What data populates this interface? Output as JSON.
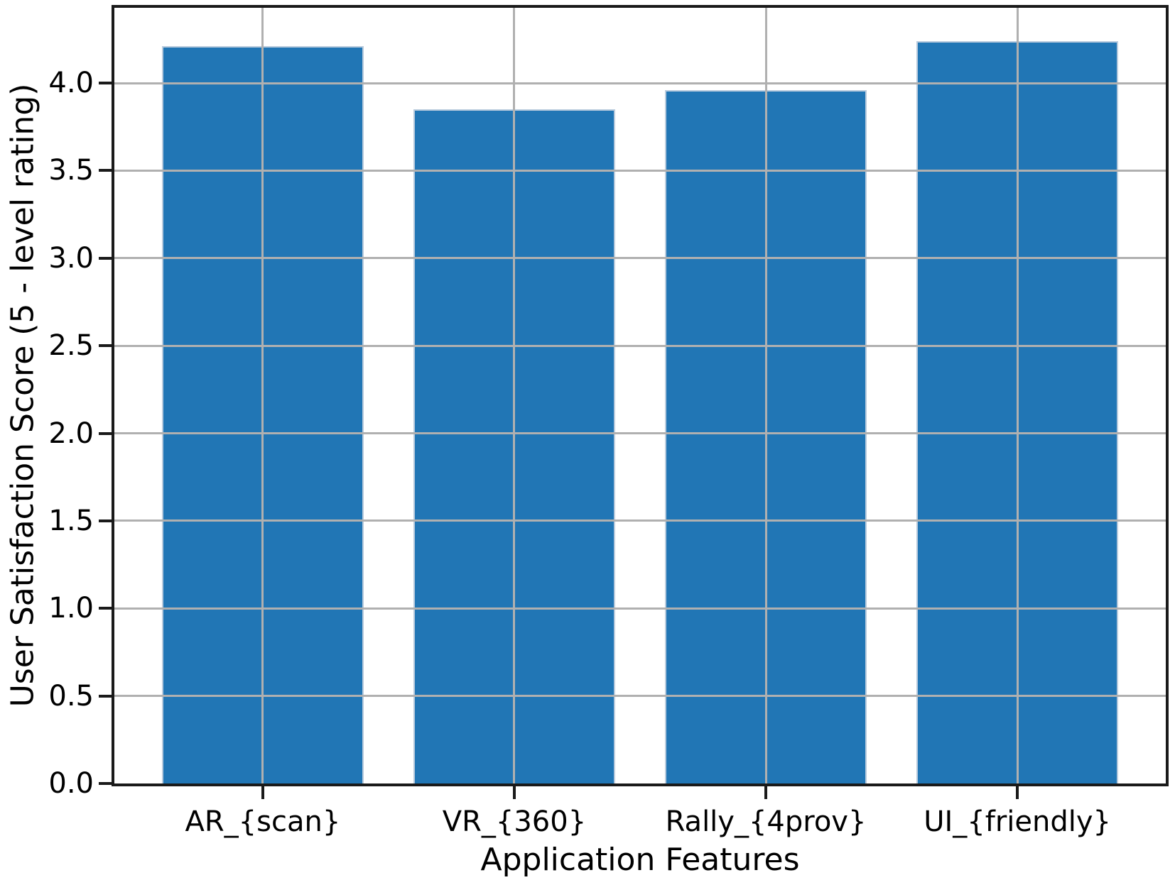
{
  "chart_data": {
    "type": "bar",
    "title": "",
    "xlabel": "Application Features",
    "ylabel": "User Satisfaction Score (5 - level rating)",
    "categories": [
      "AR_{scan}",
      "VR_{360}",
      "Rally_{4prov}",
      "UI_{friendly}"
    ],
    "values": [
      4.21,
      3.85,
      3.96,
      4.24
    ],
    "ytick_labels": [
      "0.0",
      "0.5",
      "1.0",
      "1.5",
      "2.0",
      "2.5",
      "3.0",
      "3.5",
      "4.0"
    ],
    "ylim": [
      0,
      4.43
    ],
    "xlim": [
      -0.59,
      3.59
    ],
    "bar_width": 0.8,
    "grid": true,
    "grid_on_top": true,
    "legend": null,
    "colors": {
      "bar": "#2176b5",
      "bar_edge": "#b9cbdd",
      "grid": "#b0b0b0",
      "spine": "#1a1a1a",
      "text": "#000000",
      "background": "#ffffff"
    }
  }
}
